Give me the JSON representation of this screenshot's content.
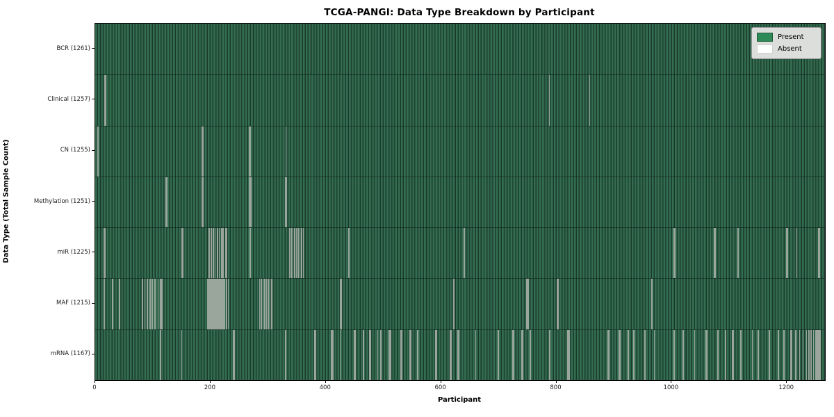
{
  "title": "TCGA-PANGI: Data Type Breakdown by Participant",
  "x_axis": {
    "label": "Participant",
    "ticks": [
      0,
      200,
      400,
      600,
      800,
      1000,
      1200
    ],
    "max": 1266
  },
  "y_axis": {
    "label": "Data Type (Total Sample Count)"
  },
  "legend": {
    "present_label": "Present",
    "absent_label": "Absent"
  },
  "colors": {
    "present": "#2e8b57",
    "absent": "#ffffff",
    "band_light": "#356d50",
    "band_dark": "#183a29",
    "absent_stripe": "#9aa59c",
    "legend_bg": "#dcdedb",
    "spine": "#000000"
  },
  "chart_data": {
    "type": "heatmap",
    "title": "TCGA-PANGI: Data Type Breakdown by Participant",
    "xlabel": "Participant",
    "ylabel": "Data Type (Total Sample Count)",
    "x_range": [
      0,
      1261
    ],
    "total_participants": 1261,
    "legend_entries": [
      "Present",
      "Absent"
    ],
    "legend_position": "upper right",
    "grid": false,
    "rows": [
      {
        "name": "bcr",
        "label": "BCR (1261)",
        "present_count": 1261,
        "absent_count": 0,
        "absent_participants": []
      },
      {
        "name": "clinical",
        "label": "Clinical (1257)",
        "present_count": 1257,
        "absent_count": 4,
        "absent_participants": [
          17,
          18,
          788,
          858
        ]
      },
      {
        "name": "cn",
        "label": "CN (1255)",
        "present_count": 1255,
        "absent_count": 6,
        "absent_participants": [
          5,
          186,
          187,
          268,
          269,
          331
        ]
      },
      {
        "name": "methylation",
        "label": "Methylation (1251)",
        "present_count": 1251,
        "absent_count": 10,
        "absent_participants": [
          123,
          124,
          186,
          187,
          268,
          269,
          270,
          330,
          331,
          332
        ]
      },
      {
        "name": "mir",
        "label": "miR (1225)",
        "present_count": 1225,
        "absent_count": 36,
        "absent_participants": [
          16,
          17,
          150,
          152,
          198,
          201,
          205,
          208,
          212,
          215,
          219,
          222,
          226,
          228,
          269,
          337,
          340,
          343,
          346,
          349,
          352,
          355,
          358,
          361,
          440,
          640,
          1004,
          1006,
          1074,
          1076,
          1115,
          1199,
          1201,
          1217,
          1255,
          1257
        ]
      },
      {
        "name": "maf",
        "label": "MAF (1215)",
        "present_count": 1215,
        "absent_count": 46,
        "absent_participants": [
          16,
          30,
          42,
          82,
          86,
          90,
          95,
          99,
          104,
          109,
          113,
          116,
          195,
          197,
          199,
          201,
          203,
          205,
          207,
          209,
          211,
          213,
          215,
          217,
          219,
          221,
          223,
          225,
          228,
          231,
          285,
          288,
          291,
          294,
          297,
          300,
          303,
          306,
          425,
          427,
          622,
          749,
          751,
          801,
          803,
          966
        ]
      },
      {
        "name": "mrna",
        "label": "mRNA (1167)",
        "present_count": 1167,
        "absent_count": 94,
        "absent_participants": [
          113,
          114,
          150,
          240,
          241,
          330,
          331,
          381,
          382,
          410,
          412,
          425,
          450,
          451,
          465,
          466,
          476,
          477,
          490,
          495,
          496,
          510,
          512,
          530,
          532,
          546,
          547,
          559,
          560,
          590,
          592,
          616,
          617,
          618,
          629,
          630,
          631,
          660,
          699,
          700,
          724,
          725,
          726,
          740,
          742,
          755,
          788,
          789,
          820,
          822,
          890,
          891,
          909,
          910,
          925,
          934,
          935,
          953,
          954,
          970,
          1004,
          1005,
          1020,
          1040,
          1060,
          1061,
          1080,
          1081,
          1093,
          1094,
          1106,
          1107,
          1120,
          1140,
          1150,
          1169,
          1170,
          1185,
          1195,
          1207,
          1208,
          1215,
          1216,
          1222,
          1228,
          1234,
          1238,
          1242,
          1246,
          1250,
          1252,
          1254,
          1256,
          1258
        ]
      }
    ]
  }
}
